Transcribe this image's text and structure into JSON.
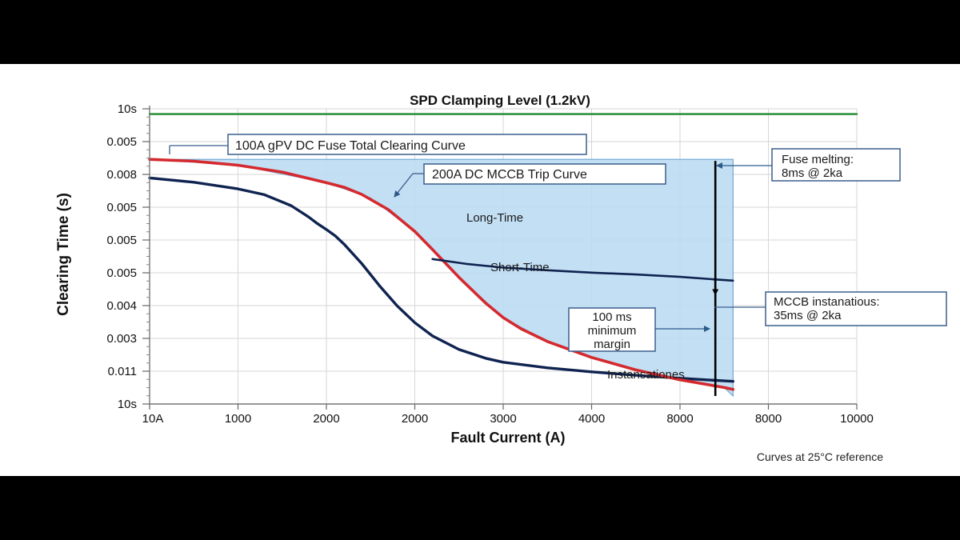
{
  "chart_data": {
    "type": "line",
    "title": "SPD Clamping Level (1.2kV)",
    "xlabel": "Fault Current (A)",
    "ylabel": "Clearing Time (s)",
    "x_tick_labels": [
      "10A",
      "1000",
      "2000",
      "2000",
      "3000",
      "4000",
      "8000",
      "8000",
      "10000"
    ],
    "y_tick_labels": [
      "10s",
      "0.005",
      "0.008",
      "0.005",
      "0.005",
      "0.005",
      "0.004",
      "0.003",
      "0.011",
      "10s"
    ],
    "grid": true,
    "reference_note": "Curves at 25°C reference",
    "colors": {
      "fuse": "#0f2350",
      "mccb": "#d42a2f",
      "spd": "#1f8a2e",
      "band_fill": "#bcdcf3",
      "band_edge": "#6ea6d2",
      "box_border": "#3a5f8c"
    },
    "series": [
      {
        "name": "100A gPV DC Fuse Total Clearing Curve",
        "x": [
          0,
          500,
          1000,
          1300,
          1600,
          1800,
          1900,
          2000,
          2100,
          2200,
          2400,
          2600,
          2800,
          3000,
          3200,
          3500,
          3800,
          4000,
          4500,
          5000,
          5500,
          6000,
          6500,
          6600
        ],
        "y": [
          0.0085,
          0.00834,
          0.00809,
          0.00787,
          0.00746,
          0.00703,
          0.00678,
          0.00656,
          0.00632,
          0.00601,
          0.00528,
          0.00445,
          0.00369,
          0.00306,
          0.00256,
          0.00205,
          0.00172,
          0.00157,
          0.00136,
          0.00121,
          0.00108,
          0.00097,
          0.00087,
          0.00085
        ]
      },
      {
        "name": "200A DC MCCB Trip Curve",
        "x": [
          0,
          500,
          1000,
          1500,
          2000,
          2200,
          2400,
          2700,
          3000,
          3200,
          3500,
          3800,
          4000,
          4200,
          4500,
          5000,
          5500,
          6000,
          6500,
          6600
        ],
        "y": [
          0.0092,
          0.00913,
          0.00898,
          0.00872,
          0.00832,
          0.00815,
          0.00788,
          0.00731,
          0.00649,
          0.00581,
          0.00476,
          0.0038,
          0.00325,
          0.00283,
          0.00235,
          0.00175,
          0.00128,
          0.00091,
          0.00062,
          0.00055
        ]
      },
      {
        "name": "Long-Time",
        "x": [
          3200,
          3600,
          4000,
          4500,
          5000,
          5500,
          6000,
          6500,
          6600
        ],
        "y": [
          0.00545,
          0.00526,
          0.00513,
          0.00503,
          0.00494,
          0.00487,
          0.00478,
          0.00466,
          0.00464
        ]
      },
      {
        "name": "SPD Clamping Level (1.2kV)",
        "x": [
          0,
          8000
        ],
        "y": [
          0.0109,
          0.0109
        ]
      }
    ],
    "bands": [
      {
        "x": [
          0,
          1000,
          2000,
          2500,
          3000,
          3500,
          4000,
          4500,
          5000,
          5500,
          6000,
          6500,
          6600
        ],
        "upper": [
          0.0092,
          0.0092,
          0.0092,
          0.0092,
          0.0092,
          0.0092,
          0.0092,
          0.0092,
          0.0092,
          0.0092,
          0.0092,
          0.0092,
          0.0092
        ],
        "lower": [
          0.0092,
          0.00898,
          0.00832,
          0.00775,
          0.00649,
          0.00476,
          0.00325,
          0.00235,
          0.00175,
          0.00128,
          0.00091,
          0.00062,
          0.0003
        ]
      }
    ],
    "annotations": {
      "fuse_label": "100A gPV DC Fuse Total Clearing Curve",
      "mccb_label": "200A DC MCCB Trip Curve",
      "long_time": "Long-Time",
      "short_time": "Short-Time",
      "instantaneous": "Instansationes",
      "margin_lines": [
        "100 ms",
        "minimum",
        "margin"
      ],
      "fuse_melting_lines": [
        "Fuse melting:",
        "8ms @ 2ka"
      ],
      "mccb_inst_lines": [
        "MCCB instanatious:",
        "35ms @ 2ka"
      ]
    },
    "margin_line_x": 6400
  }
}
